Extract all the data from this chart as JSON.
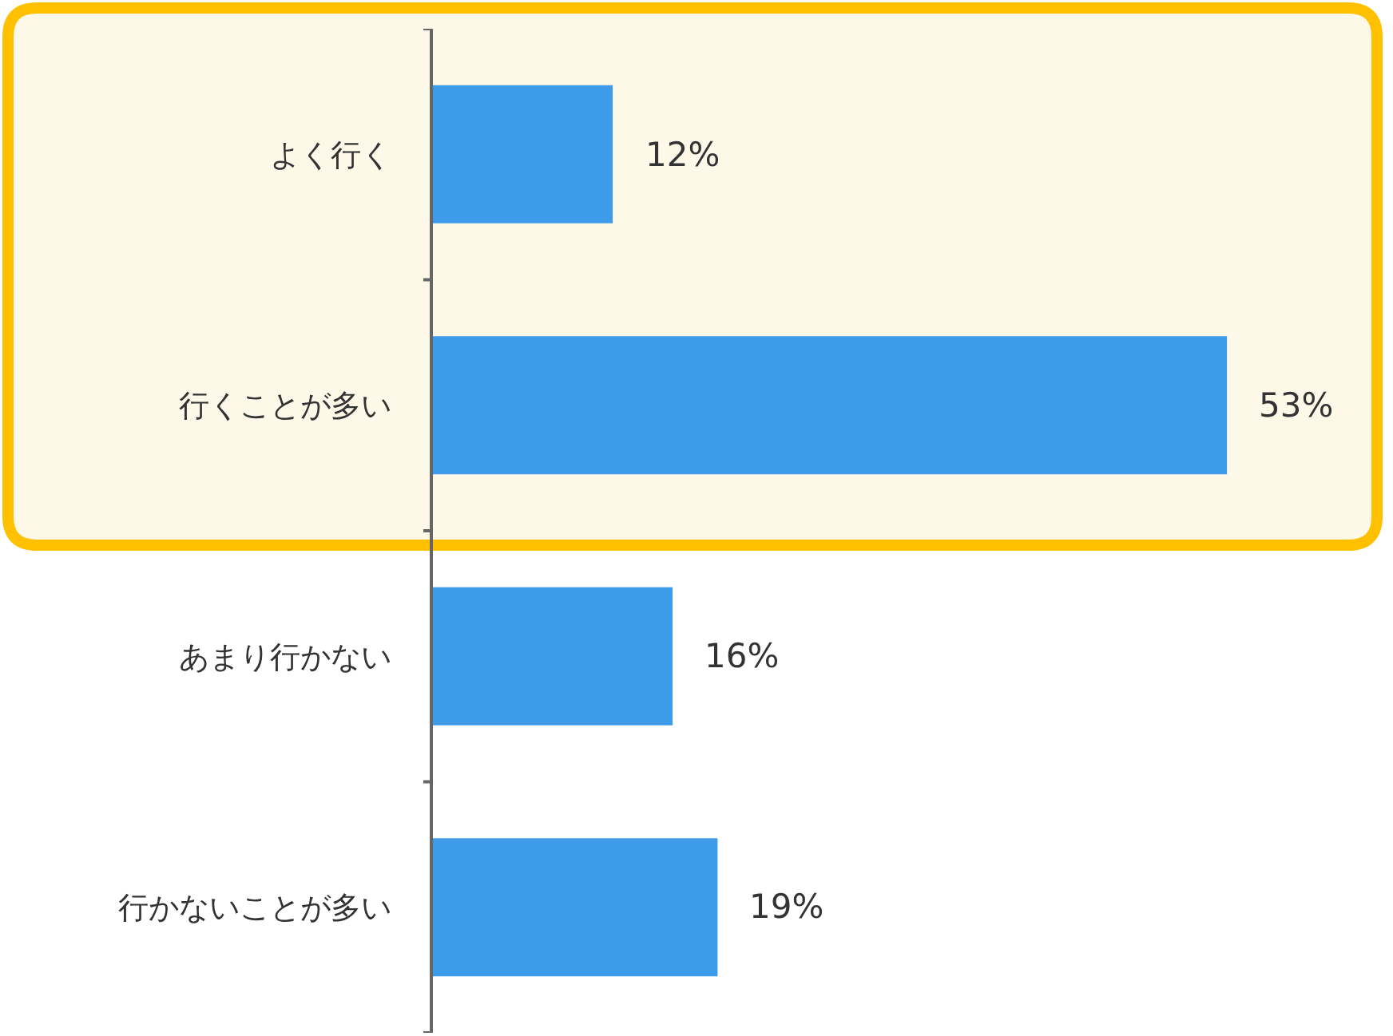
{
  "chart_data": {
    "type": "bar",
    "orientation": "horizontal",
    "categories": [
      "よく行く",
      "行くことが多い",
      "あまり行かない",
      "行かないことが多い"
    ],
    "values": [
      12,
      53,
      16,
      19
    ],
    "value_labels": [
      "12%",
      "53%",
      "16%",
      "19%"
    ],
    "color": "#3d9be9",
    "bands": [
      {
        "axis": "y",
        "from": "よく行く",
        "to": "行くことが多い",
        "color": "#fef8e8"
      }
    ]
  }
}
